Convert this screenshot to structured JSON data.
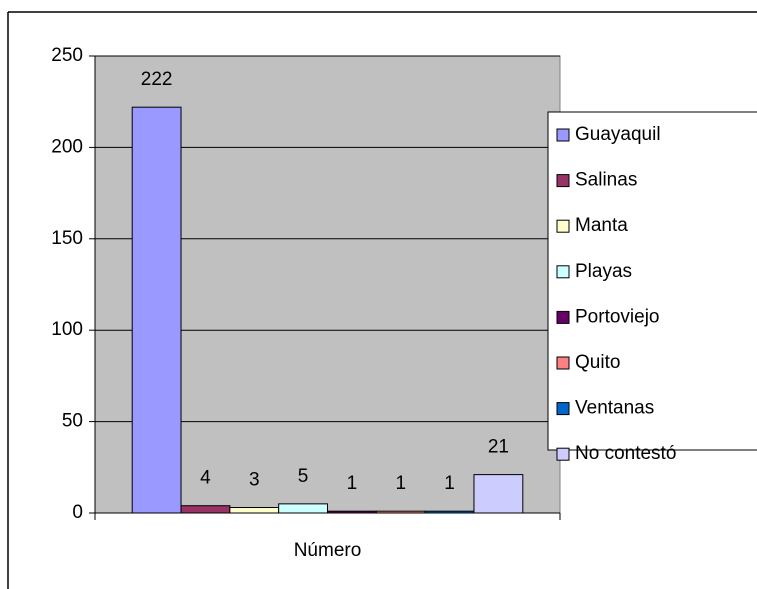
{
  "chart_data": {
    "type": "bar",
    "categories": [
      "Número"
    ],
    "series": [
      {
        "name": "Guayaquil",
        "color": "#9999ff",
        "values": [
          222
        ]
      },
      {
        "name": "Salinas",
        "color": "#993366",
        "values": [
          4
        ]
      },
      {
        "name": "Manta",
        "color": "#ffffcc",
        "values": [
          3
        ]
      },
      {
        "name": "Playas",
        "color": "#ccffff",
        "values": [
          5
        ]
      },
      {
        "name": "Portoviejo",
        "color": "#660066",
        "values": [
          1
        ]
      },
      {
        "name": "Quito",
        "color": "#ff8080",
        "values": [
          1
        ]
      },
      {
        "name": "Ventanas",
        "color": "#0066cc",
        "values": [
          1
        ]
      },
      {
        "name": "No contestó",
        "color": "#ccccff",
        "values": [
          21
        ]
      }
    ],
    "ylim": [
      0,
      250
    ],
    "yticks": [
      0,
      50,
      100,
      150,
      200,
      250
    ],
    "grid": true,
    "legend": "right",
    "plot_background": "#c0c0c0"
  }
}
